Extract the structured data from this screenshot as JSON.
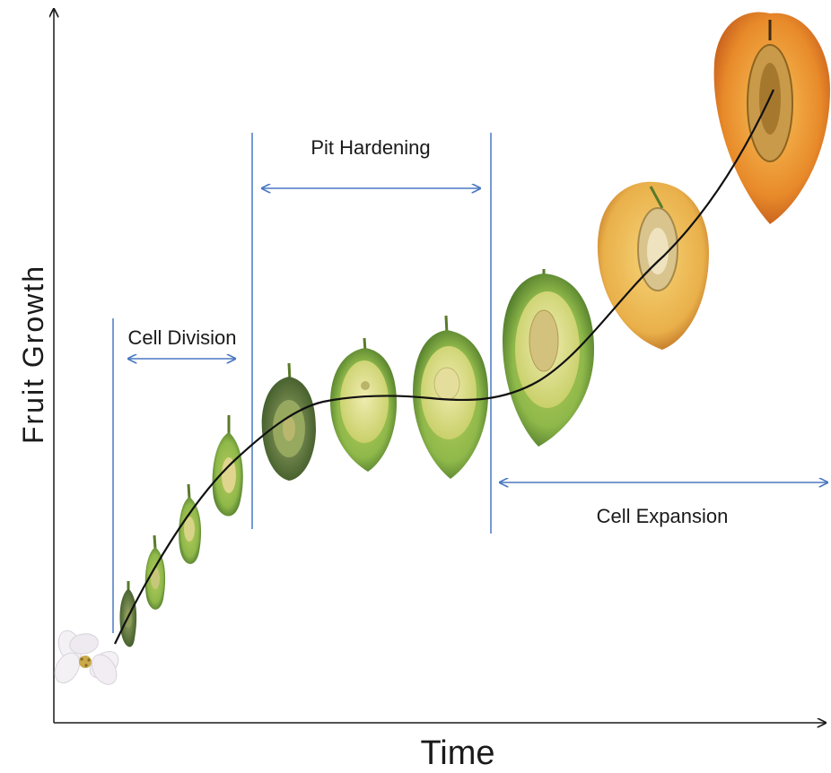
{
  "axes": {
    "x_label": "Time",
    "y_label": "Fruit Growth"
  },
  "phases": {
    "cell_division": "Cell Division",
    "pit_hardening": "Pit Hardening",
    "cell_expansion": "Cell Expansion"
  },
  "colors": {
    "axis": "#1a1a1a",
    "phase_line": "#4a78c2",
    "curve": "#111111",
    "green_fruit": "#8fb84a",
    "flesh_green": "#d9dd8a",
    "ripe_fruit": "#e08a2a",
    "ripe_flesh": "#f2c35a",
    "flower_petal": "#f4f1f5"
  },
  "stages": [
    {
      "name": "flower",
      "icon": "blossom-icon"
    },
    {
      "name": "fruitlet-1",
      "icon": "green-fruitlet-icon"
    },
    {
      "name": "fruitlet-2",
      "icon": "green-fruitlet-icon"
    },
    {
      "name": "fruitlet-3",
      "icon": "green-fruitlet-icon"
    },
    {
      "name": "fruitlet-4",
      "icon": "green-fruitlet-icon"
    },
    {
      "name": "green-fruit-1",
      "icon": "green-fruit-half-icon"
    },
    {
      "name": "green-fruit-2",
      "icon": "green-fruit-half-icon"
    },
    {
      "name": "green-fruit-3",
      "icon": "green-fruit-half-icon"
    },
    {
      "name": "green-fruit-4",
      "icon": "green-fruit-half-icon"
    },
    {
      "name": "ripening-fruit",
      "icon": "yellow-fruit-half-icon"
    },
    {
      "name": "ripe-fruit",
      "icon": "ripe-apricot-half-icon"
    }
  ]
}
